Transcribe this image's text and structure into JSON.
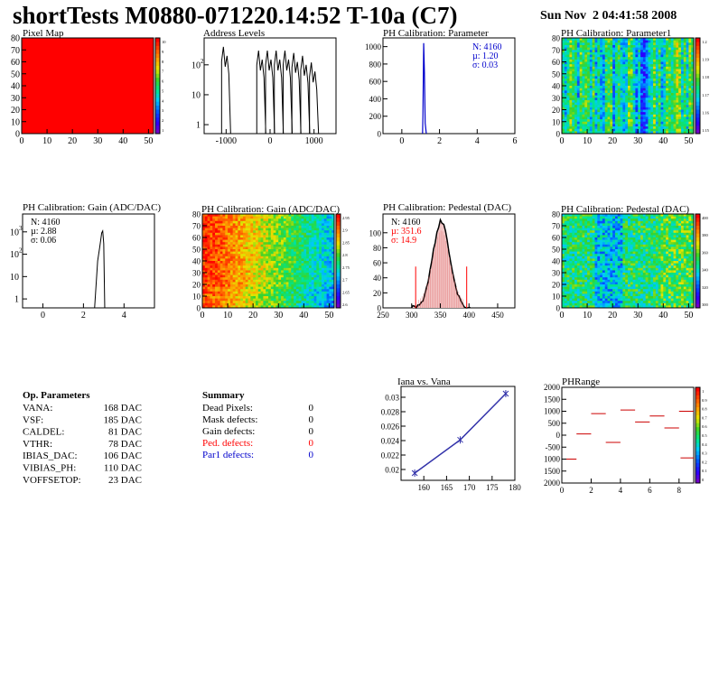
{
  "header": {
    "title": "shortTests M0880-071220.14:52 T-10a (C7)",
    "date": "Sun Nov  2 04:41:58 2008"
  },
  "colors": {
    "red": "#ff0000",
    "blue": "#0000cc",
    "purple": "#3333aa"
  },
  "chart_data": [
    {
      "id": "pixel-map",
      "type": "heatmap",
      "title": "Pixel Map",
      "xticks": [
        "0",
        "10",
        "20",
        "30",
        "40",
        "50"
      ],
      "yticks": [
        "0",
        "10",
        "20",
        "30",
        "40",
        "50",
        "60",
        "70",
        "80"
      ],
      "xlim": [
        0,
        52
      ],
      "ylim": [
        0,
        80
      ],
      "fill": "uniform-red",
      "zticks": [
        "10",
        "9",
        "8",
        "7",
        "6",
        "5",
        "4",
        "3",
        "2",
        "1"
      ]
    },
    {
      "id": "address-levels",
      "type": "bar",
      "title": "Address Levels",
      "ylog": true,
      "xticks": [
        "-1000",
        "0",
        "1000"
      ],
      "yticks": [
        "1",
        "10",
        "10^2"
      ],
      "xlim": [
        -1500,
        1500
      ],
      "peaks_x": [
        -1000,
        -200,
        0,
        200,
        400,
        600,
        800,
        1000
      ],
      "peak_heights": [
        400,
        300,
        300,
        300,
        300,
        250,
        200,
        120
      ]
    },
    {
      "id": "ph-cal-parameter",
      "type": "bar",
      "title": "PH Calibration: Parameter",
      "xticks": [
        "0",
        "2",
        "4",
        "6"
      ],
      "yticks": [
        "0",
        "200",
        "400",
        "600",
        "800",
        "1000"
      ],
      "xlim": [
        -1,
        6
      ],
      "ylim": [
        0,
        1100
      ],
      "stats": {
        "n": "N: 4160",
        "mu": "µ: 1.20",
        "sigma": "σ: 0.03"
      }
    },
    {
      "id": "ph-cal-parameter1",
      "type": "heatmap",
      "title": "PH Calibration: Parameter1",
      "xticks": [
        "0",
        "10",
        "20",
        "30",
        "40",
        "50"
      ],
      "yticks": [
        "0",
        "10",
        "20",
        "30",
        "40",
        "50",
        "60",
        "70",
        "80"
      ],
      "xlim": [
        0,
        52
      ],
      "ylim": [
        0,
        80
      ],
      "zticks": [
        "1.2",
        "1.19",
        "1.18",
        "1.17",
        "1.16",
        "1.15"
      ]
    },
    {
      "id": "ph-cal-gain-hist",
      "type": "bar",
      "title": "PH Calibration: Gain (ADC/DAC)",
      "ylog": true,
      "xticks": [
        "0",
        "2",
        "4"
      ],
      "yticks": [
        "1",
        "10",
        "10^2",
        "10^3"
      ],
      "xlim": [
        -1,
        5.5
      ],
      "stats": {
        "n": "N: 4160",
        "mu": "µ: 2.88",
        "sigma": "σ: 0.06"
      }
    },
    {
      "id": "ph-cal-gain-map",
      "type": "heatmap",
      "title": "PH Calibration: Gain (ADC/DAC)",
      "xticks": [
        "0",
        "10",
        "20",
        "30",
        "40",
        "50"
      ],
      "yticks": [
        "0",
        "10",
        "20",
        "30",
        "40",
        "50",
        "60",
        "70",
        "80"
      ],
      "xlim": [
        0,
        52
      ],
      "ylim": [
        0,
        80
      ],
      "zticks": [
        "2.95",
        "2.9",
        "2.85",
        "2.8",
        "2.75",
        "2.7",
        "2.65",
        "2.6"
      ]
    },
    {
      "id": "ph-cal-pedestal-hist",
      "type": "bar",
      "title": "PH Calibration: Pedestal (DAC)",
      "xticks": [
        "250",
        "300",
        "350",
        "400",
        "450"
      ],
      "yticks": [
        "0",
        "20",
        "40",
        "60",
        "80",
        "100"
      ],
      "xlim": [
        250,
        480
      ],
      "ylim": [
        0,
        125
      ],
      "stats": {
        "n": "N: 4160",
        "mu": "µ: 351.6",
        "sigma": "σ: 14.9"
      }
    },
    {
      "id": "ph-cal-pedestal-map",
      "type": "heatmap",
      "title": "PH Calibration: Pedestal (DAC)",
      "xticks": [
        "0",
        "10",
        "20",
        "30",
        "40",
        "50"
      ],
      "yticks": [
        "0",
        "10",
        "20",
        "30",
        "40",
        "50",
        "60",
        "70",
        "80"
      ],
      "xlim": [
        0,
        52
      ],
      "ylim": [
        0,
        80
      ],
      "zticks": [
        "400",
        "380",
        "360",
        "340",
        "320",
        "300"
      ]
    },
    {
      "id": "iana-vana",
      "type": "line",
      "title": "Iana vs. Vana",
      "x": [
        158,
        168,
        178
      ],
      "y": [
        0.0195,
        0.0241,
        0.0305
      ],
      "xticks": [
        "160",
        "165",
        "170",
        "175",
        "180"
      ],
      "yticks": [
        "0.02",
        "0.022",
        "0.024",
        "0.026",
        "0.028",
        "0.03"
      ],
      "xlim": [
        155,
        180
      ],
      "ylim": [
        0.0185,
        0.0315
      ]
    },
    {
      "id": "phrange",
      "type": "scatter",
      "title": "PHRange",
      "x": [
        0,
        1,
        2,
        3,
        4,
        5,
        6,
        7,
        8
      ],
      "y": [
        -1000,
        50,
        900,
        -300,
        1050,
        550,
        800,
        300,
        1000
      ],
      "extra_point": {
        "x": 9,
        "y": -950
      },
      "xticks": [
        "0",
        "2",
        "4",
        "6",
        "8"
      ],
      "yticks": [
        "2000",
        "1500",
        "1000",
        "500",
        "0",
        "-500",
        "1000",
        "1500",
        "2000"
      ],
      "xlim": [
        0,
        9
      ],
      "ylim": [
        -2000,
        2000
      ],
      "zticks": [
        "1",
        "0.9",
        "0.8",
        "0.7",
        "0.6",
        "0.5",
        "0.4",
        "0.3",
        "0.2",
        "0.1",
        "0"
      ]
    }
  ],
  "op_params": {
    "heading": "Op. Parameters",
    "rows": [
      {
        "name": "VANA:",
        "value": "168 DAC"
      },
      {
        "name": "VSF:",
        "value": "185 DAC"
      },
      {
        "name": "CALDEL:",
        "value": "81 DAC"
      },
      {
        "name": "VTHR:",
        "value": "78 DAC"
      },
      {
        "name": "IBIAS_DAC:",
        "value": "106 DAC"
      },
      {
        "name": "VIBIAS_PH:",
        "value": "110 DAC"
      },
      {
        "name": "VOFFSETOP:",
        "value": "23 DAC"
      }
    ]
  },
  "summary": {
    "heading": "Summary",
    "rows": [
      {
        "name": "Dead Pixels:",
        "value": "0",
        "color": "#000000"
      },
      {
        "name": "Mask defects:",
        "value": "0",
        "color": "#000000"
      },
      {
        "name": "Gain defects:",
        "value": "0",
        "color": "#000000"
      },
      {
        "name": "Ped. defects:",
        "value": "0",
        "color": "#ff0000"
      },
      {
        "name": "Par1 defects:",
        "value": "0",
        "color": "#0000cc"
      }
    ]
  }
}
